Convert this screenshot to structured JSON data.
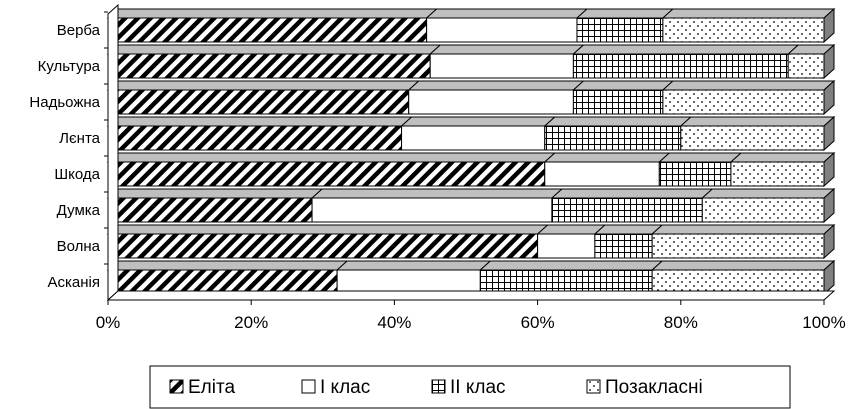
{
  "chart_data": {
    "type": "bar",
    "orientation": "horizontal",
    "stacked": true,
    "percent_stacked": true,
    "three_d": true,
    "categories": [
      "Верба",
      "Культура",
      "Надьожна",
      "Лєнта",
      "Шкода",
      "Думка",
      "Волна",
      "Асканія"
    ],
    "series": [
      {
        "name": "Еліта",
        "pattern": "diagonal-hatch",
        "values": [
          44.5,
          45,
          42,
          41,
          61,
          28.5,
          60,
          32
        ]
      },
      {
        "name": "І клас",
        "pattern": "white",
        "values": [
          21,
          20,
          23,
          20,
          16,
          33.5,
          8,
          20
        ]
      },
      {
        "name": "ІІ клас",
        "pattern": "grid",
        "values": [
          12,
          30,
          12.5,
          19,
          10,
          21,
          8,
          24
        ]
      },
      {
        "name": "Позакласні",
        "pattern": "dots",
        "values": [
          22.5,
          5,
          22.5,
          20,
          13,
          17,
          24,
          24
        ]
      }
    ],
    "x_ticks": [
      "0%",
      "20%",
      "40%",
      "60%",
      "80%",
      "100%"
    ],
    "xlim": [
      0,
      100
    ],
    "grid": false,
    "legend_position": "bottom",
    "colors": {
      "fill": "#ffffff",
      "stroke": "#000000",
      "top": "#bfbfbf",
      "side": "#808080"
    }
  }
}
